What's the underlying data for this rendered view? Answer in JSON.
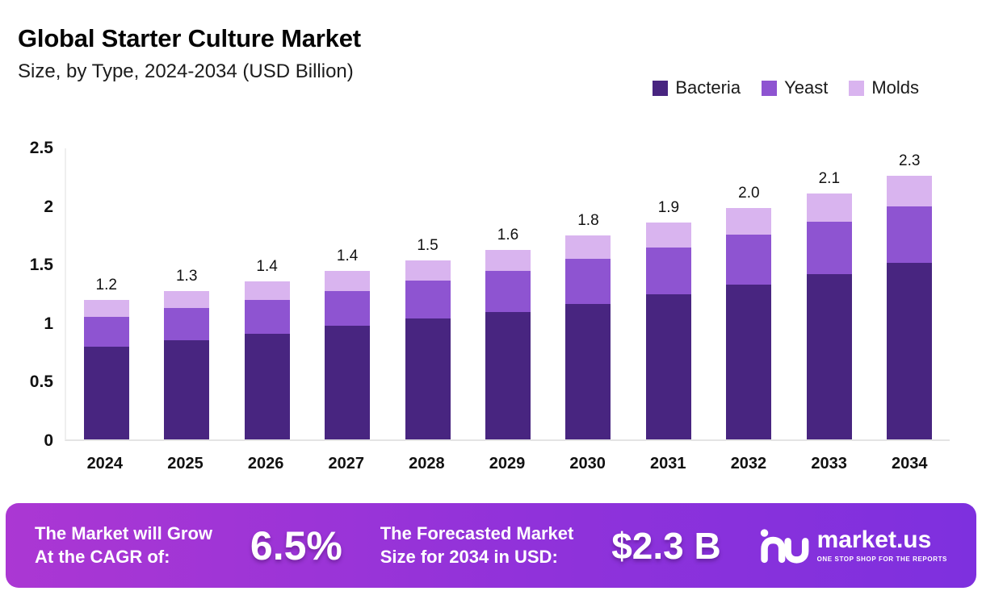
{
  "chart_data": {
    "type": "bar",
    "stacked": true,
    "title": "Global Starter Culture Market",
    "subtitle": "Size, by Type, 2024-2034 (USD Billion)",
    "categories": [
      "2024",
      "2025",
      "2026",
      "2027",
      "2028",
      "2029",
      "2030",
      "2031",
      "2032",
      "2033",
      "2034"
    ],
    "series": [
      {
        "name": "Bacteria",
        "color": "#482580",
        "values": [
          0.79,
          0.85,
          0.9,
          0.97,
          1.03,
          1.09,
          1.16,
          1.24,
          1.32,
          1.41,
          1.51
        ]
      },
      {
        "name": "Yeast",
        "color": "#8e54d1",
        "values": [
          0.26,
          0.27,
          0.29,
          0.3,
          0.33,
          0.35,
          0.38,
          0.4,
          0.43,
          0.45,
          0.48
        ]
      },
      {
        "name": "Molds",
        "color": "#d9b4ef",
        "values": [
          0.14,
          0.15,
          0.16,
          0.17,
          0.17,
          0.18,
          0.2,
          0.21,
          0.23,
          0.24,
          0.26
        ]
      }
    ],
    "totals_labels": [
      "1.2",
      "1.3",
      "1.4",
      "1.4",
      "1.5",
      "1.6",
      "1.8",
      "1.9",
      "2.0",
      "2.1",
      "2.3"
    ],
    "yticks": [
      "0",
      "0.5",
      "1",
      "1.5",
      "2",
      "2.5"
    ],
    "ylim": [
      0,
      2.5
    ],
    "xlabel": "",
    "ylabel": "",
    "grid": false,
    "legend_position": "top-right"
  },
  "footer": {
    "cagr_label_line1": "The Market will Grow",
    "cagr_label_line2": "At the CAGR of:",
    "cagr_value": "6.5%",
    "forecast_label_line1": "The Forecasted Market",
    "forecast_label_line2": "Size for 2034 in USD:",
    "forecast_value": "$2.3 B",
    "brand_name": "market.us",
    "brand_tagline": "ONE STOP SHOP FOR THE REPORTS"
  }
}
